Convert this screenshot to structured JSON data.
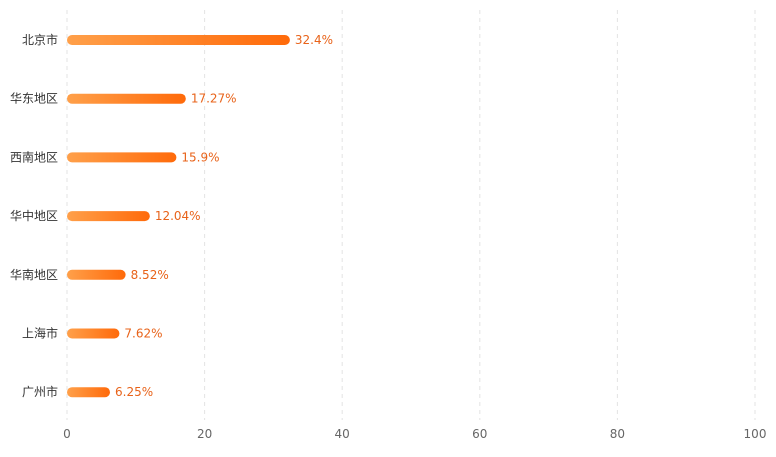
{
  "chart_data": {
    "type": "bar",
    "orientation": "horizontal",
    "categories": [
      "北京市",
      "华东地区",
      "西南地区",
      "华中地区",
      "华南地区",
      "上海市",
      "广州市"
    ],
    "values": [
      32.4,
      17.27,
      15.9,
      12.04,
      8.52,
      7.62,
      6.25
    ],
    "value_labels": [
      "32.4%",
      "17.27%",
      "15.9%",
      "12.04%",
      "8.52%",
      "7.62%",
      "6.25%"
    ],
    "xlim": [
      0,
      100
    ],
    "x_ticks": [
      "0",
      "20",
      "40",
      "60",
      "80",
      "100"
    ],
    "grid": "vertical-dashed",
    "title": "",
    "xlabel": "",
    "ylabel": ""
  },
  "colors": {
    "bar_start": "#ffa04a",
    "bar_end": "#ff6a0a",
    "value_text": "#e8631a",
    "grid": "#e3e3e3"
  }
}
